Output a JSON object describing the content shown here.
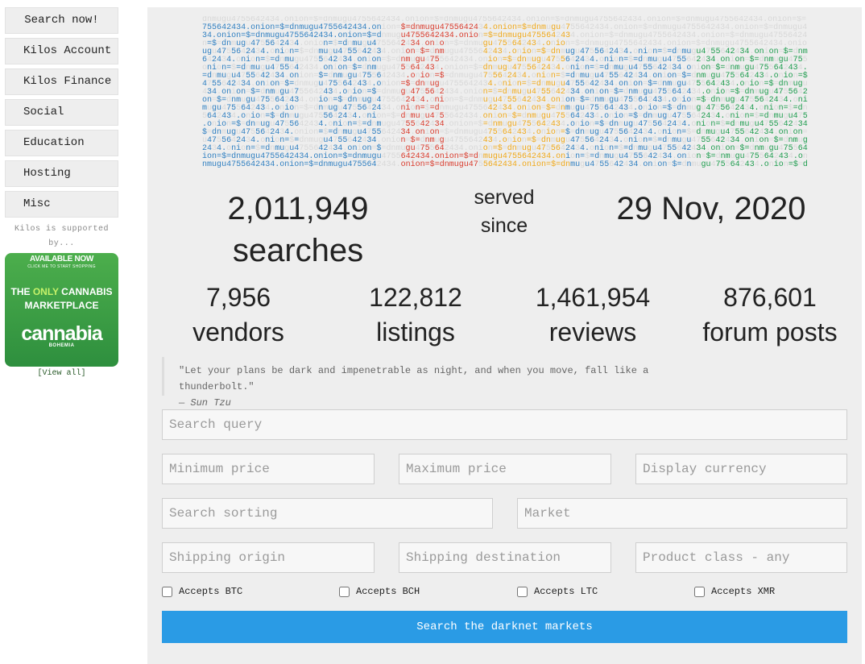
{
  "sidebar": {
    "items": [
      {
        "label": "Search now!"
      },
      {
        "label": "Kilos Account"
      },
      {
        "label": "Kilos Finance"
      },
      {
        "label": "Social"
      },
      {
        "label": "Education"
      },
      {
        "label": "Hosting"
      },
      {
        "label": "Misc"
      }
    ],
    "supported_text": "Kilos is supported by...",
    "ad": {
      "line1": "AVAILABLE NOW",
      "line2": "CLICK ME TO START SHOPPING",
      "line3a": "THE ",
      "line3b": "ONLY",
      "line3c": " CANNABIS",
      "line4": "MARKETPLACE",
      "logo": "cannabia",
      "sub": "BOHEMIA"
    },
    "view_all": "[View all]"
  },
  "stats": {
    "searches_count": "2,011,949",
    "searches_label": "searches",
    "served": "served",
    "since": "since",
    "date": "29 Nov, 2020",
    "vendors_count": "7,956",
    "vendors_label": "vendors",
    "listings_count": "122,812",
    "listings_label": "listings",
    "reviews_count": "1,461,954",
    "reviews_label": "reviews",
    "forum_count": "876,601",
    "forum_label": "forum posts"
  },
  "quote": {
    "text": "\"Let your plans be dark and impenetrable as night, and when you move, fall like a thunderbolt.\"",
    "author": "— Sun Tzu"
  },
  "form": {
    "search_query_placeholder": "Search query",
    "min_price_placeholder": "Minimum price",
    "max_price_placeholder": "Maximum price",
    "currency_placeholder": "Display currency",
    "sorting_placeholder": "Search sorting",
    "market_placeholder": "Market",
    "origin_placeholder": "Shipping origin",
    "destination_placeholder": "Shipping destination",
    "product_class_placeholder": "Product class - any",
    "checkboxes": [
      {
        "label": "Accepts BTC"
      },
      {
        "label": "Accepts BCH"
      },
      {
        "label": "Accepts LTC"
      },
      {
        "label": "Accepts XMR"
      }
    ],
    "submit_label": "Search the darknet markets"
  }
}
